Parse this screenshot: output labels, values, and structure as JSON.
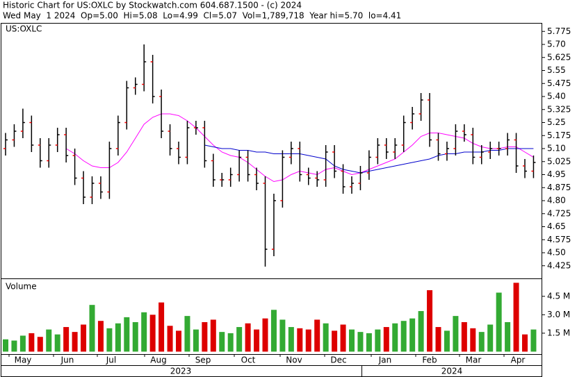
{
  "header": {
    "title": "Historic Chart for US:OXLC by Stockwatch.com 604.687.1500 - (c) 2024",
    "quote": "Wed May  1 2024  Op=5.00  Hi=5.08  Lo=4.99  Cl=5.07  Vol=1,789,718  Year hi=5.70  lo=4.41"
  },
  "x_axis": {
    "months": [
      "May",
      "Jun",
      "Jul",
      "Aug",
      "Sep",
      "Oct",
      "Nov",
      "Dec",
      "Jan",
      "Feb",
      "Mar",
      "Apr"
    ],
    "years": [
      "2023",
      "2024"
    ]
  },
  "chart_data": [
    {
      "type": "ohlc",
      "label": "US:OXLC",
      "bar_color": "#000000",
      "open_color": "#ff0000",
      "open": [
        5.1,
        5.15,
        5.2,
        5.25,
        5.12,
        5.03,
        5.12,
        5.18,
        5.06,
        4.93,
        4.82,
        4.9,
        4.85,
        5.1,
        5.25,
        5.45,
        5.47,
        5.6,
        5.4,
        5.2,
        5.1,
        5.05,
        5.22,
        5.22,
        5.03,
        4.92,
        4.92,
        4.95,
        5.05,
        4.95,
        4.9,
        4.52,
        4.8,
        5.05,
        5.1,
        4.95,
        4.93,
        4.92,
        5.08,
        4.97,
        4.88,
        4.9,
        4.96,
        5.05,
        5.12,
        5.08,
        5.12,
        5.25,
        5.3,
        5.38,
        5.15,
        5.07,
        5.1,
        5.2,
        5.18,
        5.05,
        5.08,
        5.1,
        5.1,
        5.15,
        5.0,
        4.97
      ],
      "high": [
        5.19,
        5.24,
        5.33,
        5.29,
        5.16,
        5.16,
        5.22,
        5.22,
        5.1,
        4.97,
        4.94,
        4.94,
        5.14,
        5.29,
        5.49,
        5.51,
        5.7,
        5.64,
        5.44,
        5.24,
        5.14,
        5.26,
        5.26,
        5.26,
        5.07,
        4.96,
        4.99,
        5.09,
        5.09,
        4.99,
        4.94,
        4.84,
        5.09,
        5.14,
        5.14,
        4.99,
        4.97,
        5.12,
        5.12,
        5.01,
        4.94,
        5.0,
        5.09,
        5.16,
        5.16,
        5.16,
        5.29,
        5.34,
        5.42,
        5.42,
        5.19,
        5.14,
        5.24,
        5.24,
        5.22,
        5.12,
        5.14,
        5.14,
        5.19,
        5.19,
        5.04,
        5.06
      ],
      "low": [
        5.06,
        5.11,
        5.16,
        5.08,
        4.99,
        4.99,
        5.08,
        5.02,
        4.89,
        4.78,
        4.78,
        4.81,
        4.81,
        5.06,
        5.21,
        5.41,
        5.43,
        5.36,
        5.16,
        5.06,
        5.01,
        5.01,
        5.18,
        4.99,
        4.88,
        4.88,
        4.88,
        4.91,
        4.91,
        4.86,
        4.42,
        4.48,
        4.76,
        5.01,
        4.91,
        4.89,
        4.88,
        4.88,
        4.93,
        4.84,
        4.84,
        4.86,
        4.92,
        5.01,
        5.04,
        5.04,
        5.08,
        5.21,
        5.26,
        5.11,
        5.03,
        5.03,
        5.06,
        5.14,
        5.01,
        5.01,
        5.04,
        5.06,
        5.06,
        4.96,
        4.93,
        4.93
      ],
      "close": [
        5.15,
        5.2,
        5.25,
        5.12,
        5.03,
        5.12,
        5.18,
        5.06,
        4.93,
        4.82,
        4.9,
        4.85,
        5.1,
        5.25,
        5.45,
        5.47,
        5.6,
        5.4,
        5.2,
        5.1,
        5.05,
        5.22,
        5.22,
        5.03,
        4.92,
        4.92,
        4.95,
        5.05,
        4.95,
        4.9,
        4.52,
        4.8,
        5.05,
        5.1,
        4.95,
        4.93,
        4.92,
        5.08,
        4.97,
        4.88,
        4.9,
        4.96,
        5.05,
        5.12,
        5.08,
        5.12,
        5.25,
        5.3,
        5.38,
        5.15,
        5.07,
        5.1,
        5.2,
        5.18,
        5.05,
        5.08,
        5.1,
        5.1,
        5.15,
        5.0,
        4.97,
        5.02
      ],
      "series": [
        {
          "color": "#ff00ff",
          "values": [
            null,
            null,
            null,
            null,
            null,
            null,
            null,
            5.1,
            5.07,
            5.03,
            5.0,
            4.99,
            4.99,
            5.02,
            5.08,
            5.16,
            5.24,
            5.28,
            5.3,
            5.3,
            5.29,
            5.26,
            5.22,
            5.17,
            5.12,
            5.08,
            5.06,
            5.05,
            5.02,
            4.98,
            4.94,
            4.91,
            4.92,
            4.95,
            4.97,
            4.96,
            4.95,
            4.98,
            4.99,
            4.97,
            4.95,
            4.96,
            4.98,
            5.0,
            5.02,
            5.04,
            5.08,
            5.12,
            5.17,
            5.19,
            5.19,
            5.18,
            5.17,
            5.16,
            5.13,
            5.11,
            5.1,
            5.1,
            5.11,
            5.11,
            5.08,
            5.05
          ]
        },
        {
          "color": "#0000cc",
          "values": [
            null,
            null,
            null,
            null,
            null,
            null,
            null,
            null,
            null,
            null,
            null,
            null,
            null,
            null,
            null,
            null,
            null,
            null,
            null,
            null,
            null,
            null,
            null,
            5.12,
            5.11,
            5.1,
            5.1,
            5.09,
            5.09,
            5.08,
            5.08,
            5.07,
            5.07,
            5.07,
            5.07,
            5.06,
            5.05,
            5.04,
            5.0,
            4.98,
            4.97,
            4.96,
            4.97,
            4.98,
            4.99,
            5.0,
            5.01,
            5.02,
            5.03,
            5.04,
            5.06,
            5.07,
            5.07,
            5.08,
            5.08,
            5.08,
            5.09,
            5.09,
            5.1,
            5.1,
            5.1,
            5.1
          ]
        }
      ],
      "ylim": [
        4.352,
        5.82
      ],
      "yticks": [
        5.775,
        {
          "value": 5.7,
          "label": "5.70"
        },
        5.625,
        5.55,
        5.475,
        {
          "value": 5.4,
          "label": "5.40"
        },
        5.325,
        5.25,
        5.175,
        {
          "value": 5.1,
          "label": "5.10"
        },
        5.025,
        4.95,
        4.875,
        {
          "value": 4.8,
          "label": "4.80"
        },
        4.725,
        4.65,
        4.575,
        {
          "value": 4.5,
          "label": "4.50"
        },
        4.425
      ]
    },
    {
      "type": "bar",
      "label": "Volume",
      "up_color": "#33aa33",
      "down_color": "#dd0000",
      "values": [
        1.0,
        0.9,
        1.3,
        1.5,
        1.2,
        1.8,
        1.4,
        2.0,
        1.6,
        2.2,
        3.8,
        2.5,
        1.9,
        2.3,
        2.8,
        2.4,
        3.2,
        3.0,
        4.0,
        2.1,
        1.7,
        2.9,
        1.8,
        2.4,
        2.6,
        1.6,
        1.5,
        2.0,
        2.3,
        1.8,
        2.7,
        3.4,
        2.6,
        2.0,
        1.9,
        1.8,
        2.6,
        2.3,
        1.7,
        2.2,
        1.8,
        1.6,
        1.5,
        1.8,
        2.0,
        2.3,
        2.5,
        2.7,
        3.3,
        5.0,
        2.0,
        1.7,
        2.9,
        2.4,
        1.9,
        1.6,
        2.2,
        4.8,
        2.4,
        5.6,
        1.4,
        1.8
      ],
      "ylim": [
        -0.2,
        5.9
      ],
      "yticks": [
        {
          "value": 4.5,
          "label": "4.5 M"
        },
        {
          "value": 3.0,
          "label": "3.0 M"
        },
        {
          "value": 1.5,
          "label": "1.5 M"
        }
      ]
    }
  ]
}
